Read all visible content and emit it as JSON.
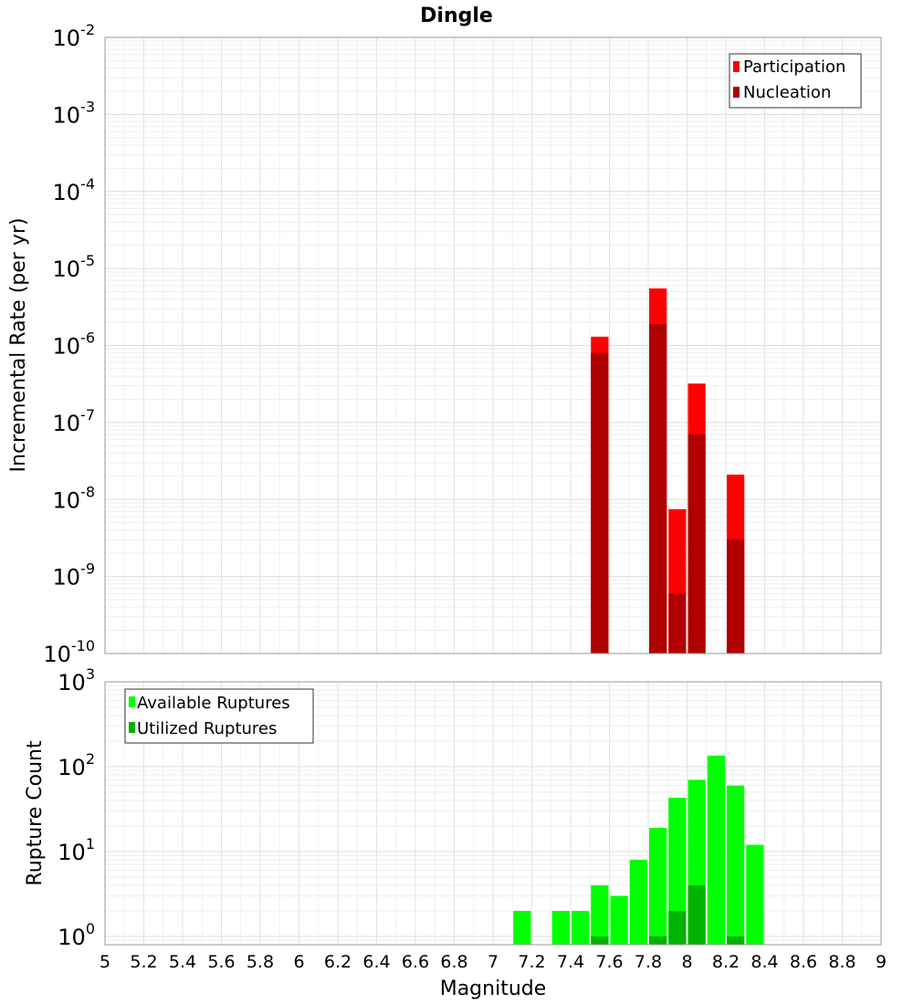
{
  "chart_data": [
    {
      "type": "bar",
      "title": "Dingle",
      "xlabel": "Magnitude",
      "ylabel": "Incremental Rate (per yr)",
      "yscale": "log",
      "ylim": [
        1e-10,
        0.01
      ],
      "xlim": [
        5,
        9
      ],
      "grid": true,
      "legend_position": "top-right",
      "y_ticks": [
        {
          "base": "10",
          "exp": "-10"
        },
        {
          "base": "10",
          "exp": "-9"
        },
        {
          "base": "10",
          "exp": "-8"
        },
        {
          "base": "10",
          "exp": "-7"
        },
        {
          "base": "10",
          "exp": "-6"
        },
        {
          "base": "10",
          "exp": "-5"
        },
        {
          "base": "10",
          "exp": "-4"
        },
        {
          "base": "10",
          "exp": "-3"
        },
        {
          "base": "10",
          "exp": "-2"
        }
      ],
      "series": [
        {
          "name": "Participation",
          "color": "#ff0000",
          "points": [
            [
              7.55,
              1.3e-06
            ],
            [
              7.85,
              5.5e-06
            ],
            [
              7.95,
              7.5e-09
            ],
            [
              8.05,
              3.2e-07
            ],
            [
              8.25,
              2.1e-08
            ]
          ]
        },
        {
          "name": "Nucleation",
          "color": "#b00000",
          "points": [
            [
              7.55,
              8e-07
            ],
            [
              7.85,
              1.9e-06
            ],
            [
              7.95,
              6e-10
            ],
            [
              8.05,
              7e-08
            ],
            [
              8.25,
              3e-09
            ]
          ]
        }
      ]
    },
    {
      "type": "bar",
      "xlabel": "Magnitude",
      "ylabel": "Rupture Count",
      "yscale": "log",
      "ylim": [
        0.8,
        1000
      ],
      "xlim": [
        5,
        9
      ],
      "grid": true,
      "legend_position": "top-left",
      "y_ticks": [
        {
          "base": "10",
          "exp": "0"
        },
        {
          "base": "10",
          "exp": "1"
        },
        {
          "base": "10",
          "exp": "2"
        },
        {
          "base": "10",
          "exp": "3"
        }
      ],
      "series": [
        {
          "name": "Available Ruptures",
          "color": "#00ff00",
          "points": [
            [
              7.15,
              2
            ],
            [
              7.35,
              2
            ],
            [
              7.45,
              2
            ],
            [
              7.55,
              4
            ],
            [
              7.65,
              3
            ],
            [
              7.75,
              8
            ],
            [
              7.85,
              19
            ],
            [
              7.95,
              43
            ],
            [
              8.05,
              70
            ],
            [
              8.15,
              135
            ],
            [
              8.25,
              60
            ],
            [
              8.35,
              12
            ]
          ]
        },
        {
          "name": "Utilized Ruptures",
          "color": "#00b300",
          "points": [
            [
              7.55,
              1
            ],
            [
              7.85,
              1
            ],
            [
              7.95,
              2
            ],
            [
              8.05,
              4
            ],
            [
              8.25,
              1
            ]
          ]
        }
      ]
    }
  ],
  "x_ticks": [
    "5",
    "5.2",
    "5.4",
    "5.6",
    "5.8",
    "6",
    "6.2",
    "6.4",
    "6.6",
    "6.8",
    "7",
    "7.2",
    "7.4",
    "7.6",
    "7.8",
    "8",
    "8.2",
    "8.4",
    "8.6",
    "8.8",
    "9"
  ]
}
